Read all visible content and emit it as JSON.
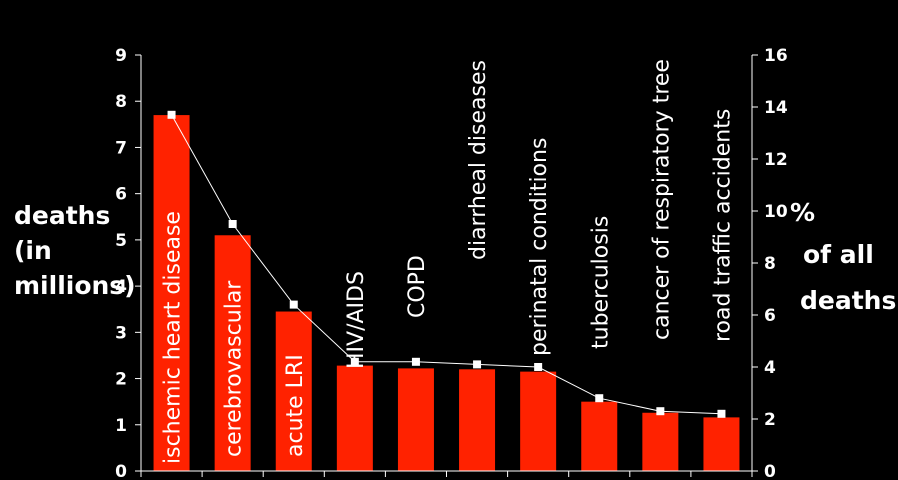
{
  "chart_data": {
    "type": "bar",
    "categories": [
      "ischemic heart disease",
      "cerebrovascular",
      "acute LRI",
      "HIV/AIDS",
      "COPD",
      "diarrheal diseases",
      "perinatal conditions",
      "tuberculosis",
      "cancer of respiratory  tree",
      "road traffic accidents"
    ],
    "series": [
      {
        "type": "bar",
        "axis": "left",
        "values": [
          7.7,
          5.1,
          3.45,
          2.28,
          2.22,
          2.2,
          2.15,
          1.5,
          1.26,
          1.16
        ]
      },
      {
        "type": "line",
        "axis": "right",
        "values": [
          13.7,
          9.5,
          6.4,
          4.2,
          4.2,
          4.1,
          4.0,
          2.8,
          2.3,
          2.2
        ]
      }
    ],
    "ylabel_left": [
      "deaths",
      "(in",
      "millions)"
    ],
    "ylabel_right": [
      "%",
      "of all",
      "deaths"
    ],
    "ylim_left": [
      0,
      9
    ],
    "ylim_right": [
      0,
      16
    ],
    "yticks_left": [
      "0",
      "1",
      "2",
      "3",
      "4",
      "5",
      "6",
      "7",
      "8",
      "9"
    ],
    "yticks_right": [
      "0",
      "2",
      "4",
      "6",
      "8",
      "10",
      "12",
      "14",
      "16"
    ],
    "grid": false,
    "legend": "none",
    "colors": {
      "bar": "#ff2200",
      "line": "#ffffff",
      "marker": "#ffffff",
      "background": "#000000"
    }
  }
}
